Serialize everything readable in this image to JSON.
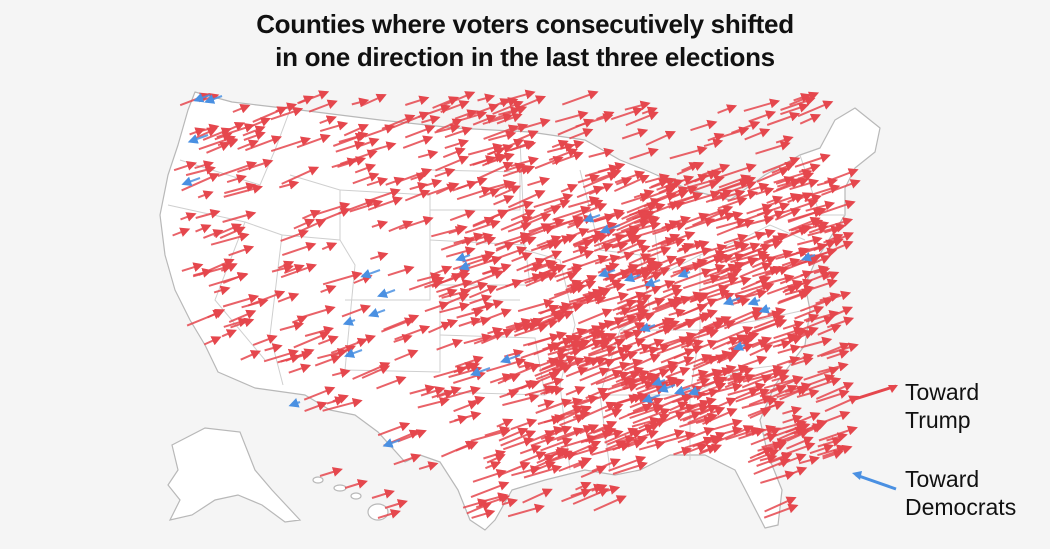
{
  "title": {
    "line1": "Counties where voters consecutively shifted",
    "line2": "in one direction in the last three elections"
  },
  "legend": {
    "trump": {
      "line1": "Toward",
      "line2": "Trump",
      "color": "#e5474d"
    },
    "democrats": {
      "line1": "Toward",
      "line2": "Democrats",
      "color": "#4a90e2"
    }
  },
  "map": {
    "land_color": "#ffffff",
    "border_color": "#b8b8b8",
    "regions": [
      "contiguous-us",
      "alaska",
      "hawaii"
    ]
  }
}
